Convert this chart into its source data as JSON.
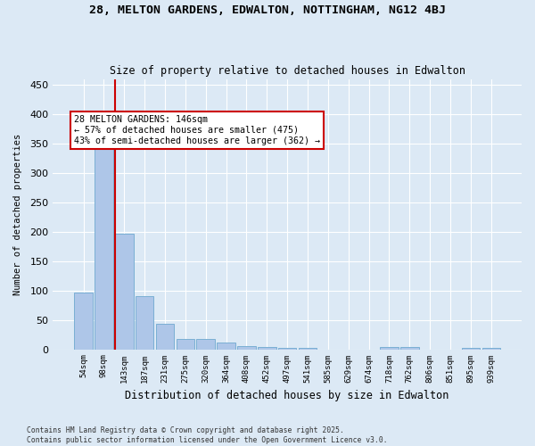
{
  "title": "28, MELTON GARDENS, EDWALTON, NOTTINGHAM, NG12 4BJ",
  "subtitle": "Size of property relative to detached houses in Edwalton",
  "xlabel": "Distribution of detached houses by size in Edwalton",
  "ylabel": "Number of detached properties",
  "bar_color": "#aec6e8",
  "bar_edge_color": "#7aafd4",
  "bins": [
    "54sqm",
    "98sqm",
    "143sqm",
    "187sqm",
    "231sqm",
    "275sqm",
    "320sqm",
    "364sqm",
    "408sqm",
    "452sqm",
    "497sqm",
    "541sqm",
    "585sqm",
    "629sqm",
    "674sqm",
    "718sqm",
    "762sqm",
    "806sqm",
    "851sqm",
    "895sqm",
    "939sqm"
  ],
  "values": [
    97,
    365,
    197,
    90,
    44,
    17,
    17,
    11,
    5,
    4,
    2,
    2,
    0,
    0,
    0,
    4,
    4,
    0,
    0,
    2,
    2
  ],
  "property_line_x": 2,
  "annotation_text": "28 MELTON GARDENS: 146sqm\n← 57% of detached houses are smaller (475)\n43% of semi-detached houses are larger (362) →",
  "annotation_box_color": "#ffffff",
  "annotation_box_edge_color": "#cc0000",
  "vline_color": "#cc0000",
  "ylim": [
    0,
    460
  ],
  "yticks": [
    0,
    50,
    100,
    150,
    200,
    250,
    300,
    350,
    400,
    450
  ],
  "footer": "Contains HM Land Registry data © Crown copyright and database right 2025.\nContains public sector information licensed under the Open Government Licence v3.0.",
  "background_color": "#dce9f5",
  "plot_background_color": "#dce9f5"
}
